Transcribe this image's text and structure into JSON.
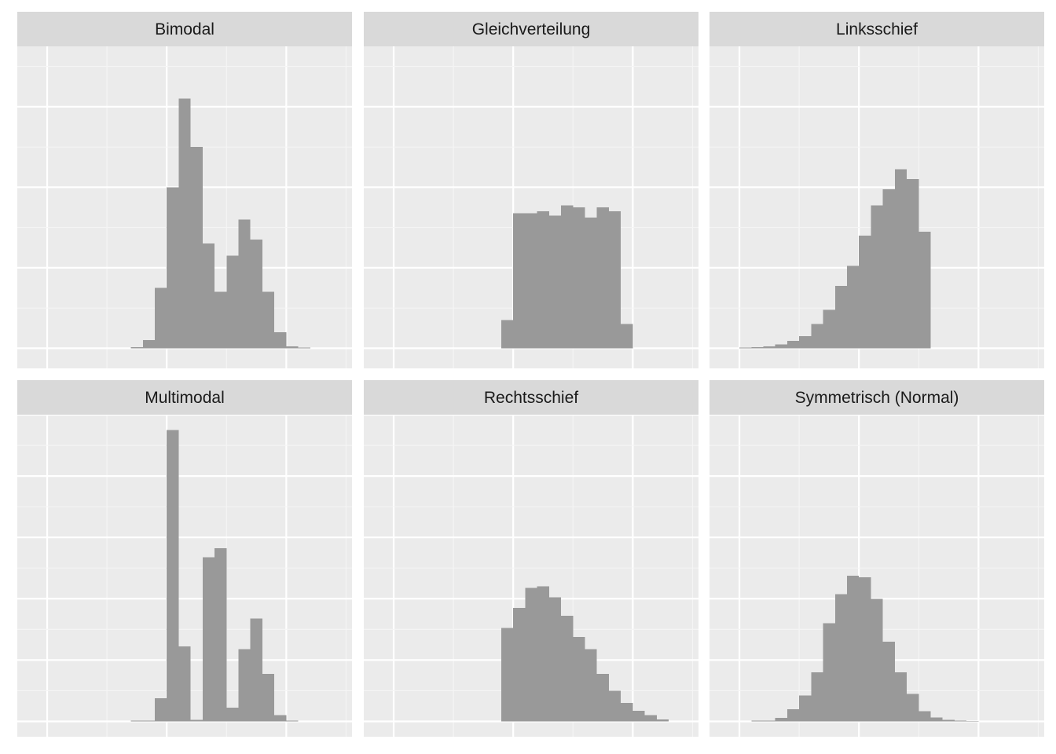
{
  "colors": {
    "panel_background": "#ebebeb",
    "strip_background": "#d9d9d9",
    "grid_major": "#ffffff",
    "grid_minor": "#f5f5f5",
    "bar_fill": "#999999"
  },
  "chart_data": [
    {
      "type": "bar",
      "title": "Bimodal",
      "x": [
        -2.5,
        -1.5,
        -0.5,
        0.5,
        1.5,
        2.5,
        3.5,
        4.5,
        5.5,
        6.5,
        7.5,
        8.5,
        9.5,
        10.5,
        11.5
      ],
      "values": [
        0.3,
        2,
        15,
        40,
        62,
        50,
        26,
        14,
        23,
        32,
        27,
        14,
        4,
        0.5,
        0.2
      ],
      "xlim": [
        -12.5,
        15.5
      ],
      "ylim": [
        -5,
        75
      ],
      "grid": true
    },
    {
      "type": "bar",
      "title": "Gleichverteilung",
      "x": [
        -0.5,
        0.5,
        1.5,
        2.5,
        3.5,
        4.5,
        5.5,
        6.5,
        7.5,
        8.5,
        9.5
      ],
      "values": [
        7,
        33.5,
        33.5,
        34,
        33,
        35.5,
        35,
        32.5,
        35,
        34,
        6
      ],
      "xlim": [
        -12.5,
        15.5
      ],
      "ylim": [
        -5,
        75
      ],
      "grid": true
    },
    {
      "type": "bar",
      "title": "Linksschief",
      "x": [
        -9.5,
        -8.5,
        -7.5,
        -6.5,
        -5.5,
        -4.5,
        -3.5,
        -2.5,
        -1.5,
        -0.5,
        0.5,
        1.5,
        2.5,
        3.5,
        4.5,
        5.5
      ],
      "values": [
        0.2,
        0.3,
        0.5,
        1,
        1.8,
        3,
        6,
        9.5,
        15.5,
        20.5,
        28,
        35.5,
        39.5,
        44.5,
        42,
        29
      ],
      "xlim": [
        -12.5,
        15.5
      ],
      "ylim": [
        -5,
        75
      ],
      "grid": true
    },
    {
      "type": "bar",
      "title": "Multimodal",
      "x": [
        -2.5,
        -1.5,
        -0.5,
        0.5,
        1.5,
        2.5,
        3.5,
        4.5,
        5.5,
        6.5,
        7.5,
        8.5,
        9.5,
        10.5
      ],
      "values": [
        0.2,
        0.2,
        7.5,
        95,
        24.5,
        0.5,
        53.5,
        56.5,
        4.5,
        23.5,
        33.5,
        15.5,
        2,
        0.2
      ],
      "xlim": [
        -12.5,
        15.5
      ],
      "ylim": [
        -5,
        100
      ],
      "grid": true
    },
    {
      "type": "bar",
      "title": "Rechtsschief",
      "x": [
        -0.5,
        0.5,
        1.5,
        2.5,
        3.5,
        4.5,
        5.5,
        6.5,
        7.5,
        8.5,
        9.5,
        10.5,
        11.5,
        12.5
      ],
      "values": [
        30.5,
        37,
        43.5,
        44,
        40.5,
        34.5,
        27.5,
        23.5,
        15.5,
        10,
        6,
        3.5,
        2,
        0.6
      ],
      "xlim": [
        -12.5,
        15.5
      ],
      "ylim": [
        -5,
        100
      ],
      "grid": true
    },
    {
      "type": "bar",
      "title": "Symmetrisch (Normal)",
      "x": [
        -8.5,
        -7.5,
        -6.5,
        -5.5,
        -4.5,
        -3.5,
        -2.5,
        -1.5,
        -0.5,
        0.5,
        1.5,
        2.5,
        3.5,
        4.5,
        5.5,
        6.5,
        7.5,
        8.5,
        9.5
      ],
      "values": [
        0.2,
        0.3,
        1.2,
        4,
        8.5,
        16,
        32,
        41.5,
        47.5,
        47,
        40,
        26,
        16,
        9,
        3.3,
        1.3,
        0.5,
        0.2,
        0.1
      ],
      "xlim": [
        -12.5,
        15.5
      ],
      "ylim": [
        -5,
        100
      ],
      "grid": true
    }
  ]
}
